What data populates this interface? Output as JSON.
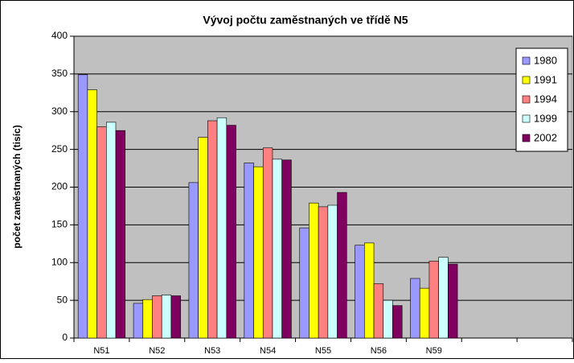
{
  "chart_data": {
    "type": "bar",
    "title": "Vývoj počtu zaměstnaných ve třídě N5",
    "y_label": "počet zaměstnaných (tisíc)",
    "categories": [
      "N51",
      "N52",
      "N53",
      "N54",
      "N55",
      "N56",
      "N59",
      null,
      null
    ],
    "series": [
      {
        "name": "1980",
        "color": "#9999ff",
        "values": [
          349,
          46,
          206,
          232,
          146,
          123,
          79,
          null,
          null
        ]
      },
      {
        "name": "1991",
        "color": "#ffff00",
        "values": [
          329,
          51,
          266,
          227,
          179,
          126,
          66,
          null,
          null
        ]
      },
      {
        "name": "1994",
        "color": "#ff8080",
        "values": [
          280,
          56,
          288,
          252,
          174,
          72,
          102,
          null,
          null
        ]
      },
      {
        "name": "1999",
        "color": "#ccffff",
        "values": [
          286,
          57,
          292,
          237,
          176,
          50,
          107,
          null,
          null
        ]
      },
      {
        "name": "2002",
        "color": "#800060",
        "values": [
          275,
          56,
          282,
          236,
          193,
          43,
          98,
          null,
          null
        ]
      }
    ],
    "ylim": [
      0,
      400
    ],
    "yticks": [
      0,
      50,
      100,
      150,
      200,
      250,
      300,
      350,
      400
    ],
    "grid": true,
    "legend": "top-right",
    "plot_background": "#c0c0c0"
  }
}
